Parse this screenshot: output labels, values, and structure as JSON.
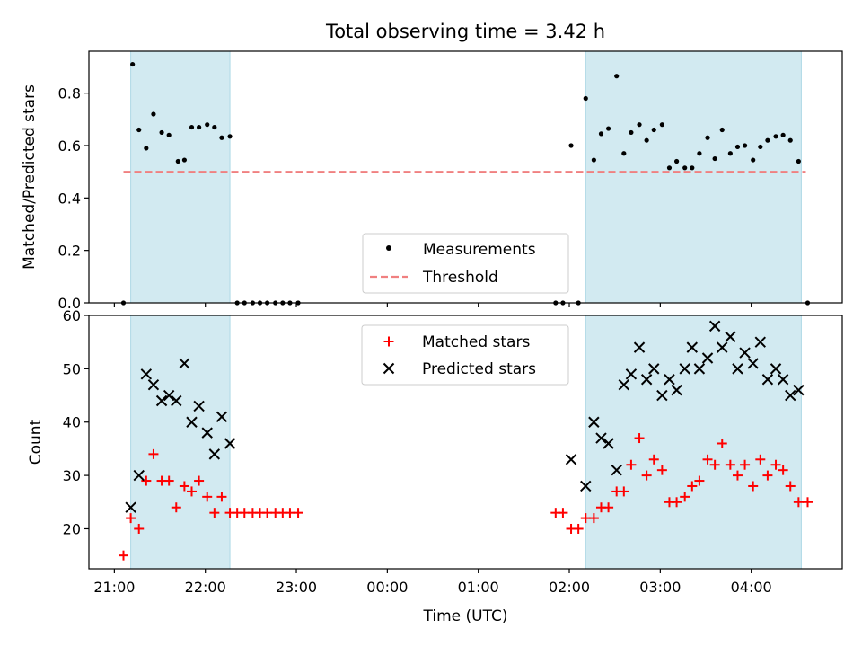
{
  "chart_data": [
    {
      "type": "scatter",
      "title": "Total observing time = 3.42 h",
      "xlabel": "",
      "ylabel": "Matched/Predicted stars",
      "ylim": [
        0,
        0.96
      ],
      "yticks": [
        0.0,
        0.2,
        0.4,
        0.6,
        0.8
      ],
      "ytick_labels": [
        "0.0",
        "0.2",
        "0.4",
        "0.6",
        "0.8"
      ],
      "shaded_ranges_hours": [
        [
          21.18,
          22.27
        ],
        [
          26.18,
          28.55
        ]
      ],
      "shade_color": "#add8e6",
      "threshold": {
        "name": "Threshold",
        "value": 0.5,
        "x_range": [
          21.1,
          28.6
        ],
        "color": "#f08080"
      },
      "legend_position": "lower-center",
      "series": [
        {
          "name": "Measurements",
          "color": "#000000",
          "x": [
            21.1,
            21.2,
            21.27,
            21.35,
            21.43,
            21.52,
            21.6,
            21.7,
            21.77,
            21.85,
            21.93,
            22.02,
            22.1,
            22.18,
            22.27,
            22.35,
            22.43,
            22.52,
            22.6,
            22.68,
            22.77,
            22.85,
            22.93,
            23.02,
            25.85,
            25.93,
            26.02,
            26.1,
            26.18,
            26.27,
            26.35,
            26.43,
            26.52,
            26.6,
            26.68,
            26.77,
            26.85,
            26.93,
            27.02,
            27.1,
            27.18,
            27.27,
            27.35,
            27.43,
            27.52,
            27.6,
            27.68,
            27.77,
            27.85,
            27.93,
            28.02,
            28.1,
            28.18,
            28.27,
            28.35,
            28.43,
            28.52,
            28.62
          ],
          "y": [
            0.0,
            0.91,
            0.66,
            0.59,
            0.72,
            0.65,
            0.64,
            0.54,
            0.545,
            0.67,
            0.67,
            0.68,
            0.67,
            0.63,
            0.635,
            0.0,
            0.0,
            0.0,
            0.0,
            0.0,
            0.0,
            0.0,
            0.0,
            0.0,
            0.0,
            0.0,
            0.6,
            0.0,
            0.78,
            0.545,
            0.645,
            0.665,
            0.865,
            0.57,
            0.65,
            0.68,
            0.62,
            0.66,
            0.68,
            0.515,
            0.54,
            0.515,
            0.515,
            0.57,
            0.63,
            0.55,
            0.66,
            0.57,
            0.595,
            0.6,
            0.545,
            0.595,
            0.62,
            0.635,
            0.64,
            0.62,
            0.54,
            0.0
          ]
        }
      ]
    },
    {
      "type": "scatter",
      "title": "",
      "xlabel": "Time (UTC)",
      "ylabel": "Count",
      "ylim": [
        12.5,
        60
      ],
      "yticks": [
        20,
        30,
        40,
        50,
        60
      ],
      "ytick_labels": [
        "20",
        "30",
        "40",
        "50",
        "60"
      ],
      "xticks_hours": [
        21,
        22,
        23,
        24,
        25,
        26,
        27,
        28
      ],
      "xtick_labels": [
        "21:00",
        "22:00",
        "23:00",
        "00:00",
        "01:00",
        "02:00",
        "03:00",
        "04:00"
      ],
      "xlim_hours": [
        20.72,
        29.0
      ],
      "shaded_ranges_hours": [
        [
          21.18,
          22.27
        ],
        [
          26.18,
          28.55
        ]
      ],
      "shade_color": "#add8e6",
      "legend_position": "upper-center",
      "series": [
        {
          "name": "Matched stars",
          "marker": "plus",
          "color": "#ff0000",
          "x": [
            21.1,
            21.18,
            21.27,
            21.35,
            21.43,
            21.52,
            21.6,
            21.68,
            21.77,
            21.85,
            21.93,
            22.02,
            22.1,
            22.18,
            22.27,
            22.35,
            22.43,
            22.52,
            22.6,
            22.68,
            22.77,
            22.85,
            22.93,
            23.02,
            25.85,
            25.93,
            26.02,
            26.1,
            26.18,
            26.27,
            26.35,
            26.43,
            26.52,
            26.6,
            26.68,
            26.77,
            26.85,
            26.93,
            27.02,
            27.1,
            27.18,
            27.27,
            27.35,
            27.43,
            27.52,
            27.6,
            27.68,
            27.77,
            27.85,
            27.93,
            28.02,
            28.1,
            28.18,
            28.27,
            28.35,
            28.43,
            28.52,
            28.62
          ],
          "y": [
            15,
            22,
            20,
            29,
            34,
            29,
            29,
            24,
            28,
            27,
            29,
            26,
            23,
            26,
            23,
            23,
            23,
            23,
            23,
            23,
            23,
            23,
            23,
            23,
            23,
            23,
            20,
            20,
            22,
            22,
            24,
            24,
            27,
            27,
            32,
            37,
            30,
            33,
            31,
            25,
            25,
            26,
            28,
            29,
            33,
            32,
            36,
            32,
            30,
            32,
            28,
            33,
            30,
            32,
            31,
            28,
            25,
            25
          ]
        },
        {
          "name": "Predicted stars",
          "marker": "x",
          "color": "#000000",
          "x": [
            21.18,
            21.27,
            21.35,
            21.43,
            21.52,
            21.6,
            21.68,
            21.77,
            21.85,
            21.93,
            22.02,
            22.1,
            22.18,
            22.27,
            26.02,
            26.18,
            26.27,
            26.35,
            26.43,
            26.52,
            26.6,
            26.68,
            26.77,
            26.85,
            26.93,
            27.02,
            27.1,
            27.18,
            27.27,
            27.35,
            27.43,
            27.52,
            27.6,
            27.68,
            27.77,
            27.85,
            27.93,
            28.02,
            28.1,
            28.18,
            28.27,
            28.35,
            28.43,
            28.52
          ],
          "y": [
            24,
            30,
            49,
            47,
            44,
            45,
            44,
            51,
            40,
            43,
            38,
            34,
            41,
            36,
            33,
            28,
            40,
            37,
            36,
            31,
            47,
            49,
            54,
            48,
            50,
            45,
            48,
            46,
            50,
            54,
            50,
            52,
            58,
            54,
            56,
            50,
            53,
            51,
            55,
            48,
            50,
            48,
            45,
            46
          ]
        }
      ]
    }
  ]
}
